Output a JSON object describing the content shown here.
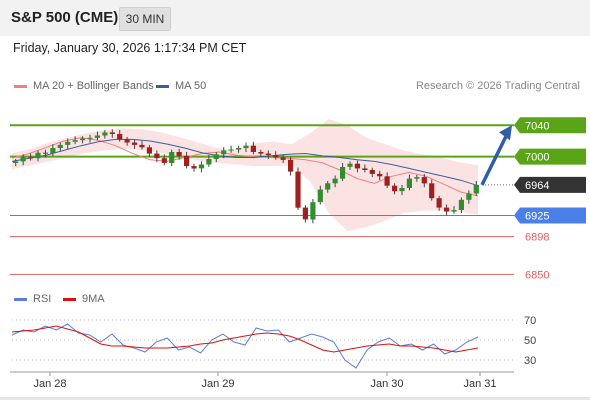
{
  "header": {
    "symbol": "S&P 500 (CME)",
    "timeframe": "30 MIN",
    "datetime": "Friday, January 30, 2026 1:17:34 PM CET",
    "credit": "Research © 2026 Trading Central"
  },
  "legend": [
    {
      "label": "MA 20 + Bollinger Bands",
      "color": "#f08080"
    },
    {
      "label": "MA 50",
      "color": "#3a5f9c"
    }
  ],
  "rsi_legend": [
    {
      "label": "RSI",
      "color": "#5b7fd6"
    },
    {
      "label": "9MA",
      "color": "#e01010"
    }
  ],
  "colors": {
    "resistance": "#5aa418",
    "pivot": "#4a7fe8",
    "support": "#e06060",
    "current": "#333333",
    "arrow": "#2e5fa8",
    "up": "#2f8f2f",
    "down": "#a02020"
  },
  "levels": [
    {
      "value": 7040,
      "label": "7040",
      "kind": "resistance"
    },
    {
      "value": 7000,
      "label": "7000",
      "kind": "resistance"
    },
    {
      "value": 6964,
      "label": "6964",
      "kind": "current"
    },
    {
      "value": 6925,
      "label": "6925",
      "kind": "pivot"
    },
    {
      "value": 6898,
      "label": "6898",
      "kind": "support"
    },
    {
      "value": 6850,
      "label": "6850",
      "kind": "support"
    }
  ],
  "chart_data": [
    {
      "type": "line",
      "ylim": [
        6830,
        7085
      ],
      "x_ticks": [
        "Jan 28",
        "Jan 29",
        "Jan 30",
        "Jan 31"
      ],
      "series": [
        {
          "name": "MA 50",
          "values": [
            6994,
            6998,
            7002,
            7008,
            7014,
            7019,
            7022,
            7022,
            7020,
            7016,
            7011,
            7005,
            7001,
            6999,
            6999,
            7001,
            7003,
            7004,
            7001,
            6999,
            6996,
            6994,
            6990,
            6985,
            6980,
            6975,
            6970,
            6963
          ]
        },
        {
          "name": "MA 20 + Bollinger Bands",
          "values": [
            6998,
            7004,
            7012,
            7020,
            7024,
            7021,
            7014,
            7004,
            6996,
            6994,
            6999,
            7004,
            7006,
            7002,
            7000,
            6999,
            6998,
            6996,
            6992,
            6983,
            6972,
            6966,
            6975,
            6980,
            6975,
            6965,
            6955,
            6950
          ]
        }
      ],
      "price_closes": [
        6994,
        6999,
        6998,
        7005,
        7004,
        7011,
        7015,
        7019,
        7021,
        7023,
        7024,
        7027,
        7031,
        7029,
        7022,
        7018,
        7015,
        7012,
        7004,
        6998,
        6992,
        7006,
        7001,
        6988,
        6985,
        6990,
        6997,
        7003,
        7008,
        7009,
        7011,
        7014,
        7006,
        7004,
        7002,
        6999,
        6996,
        6981,
        6935,
        6920,
        6942,
        6958,
        6966,
        6972,
        6987,
        6991,
        6985,
        6983,
        6978,
        6975,
        6963,
        6956,
        6960,
        6972,
        6974,
        6966,
        6947,
        6935,
        6930,
        6932,
        6945,
        6953,
        6964
      ],
      "bollinger_upper": [
        7004,
        7010,
        7018,
        7024,
        7030,
        7034,
        7036,
        7035,
        7031,
        7025,
        7018,
        7011,
        7009,
        7017,
        7019,
        7016,
        7030,
        7048,
        7040,
        7024,
        7016,
        7008,
        7003,
        6999,
        6993,
        6989
      ],
      "bollinger_lower": [
        6984,
        6989,
        6994,
        6999,
        7005,
        7008,
        7010,
        7008,
        7005,
        7000,
        6995,
        6992,
        6990,
        6988,
        6988,
        6989,
        6968,
        6928,
        6905,
        6910,
        6918,
        6928,
        6931,
        6931,
        6930,
        6926
      ]
    },
    {
      "type": "line",
      "ylim": [
        20,
        80
      ],
      "y_ticks": [
        70,
        50,
        30
      ],
      "series": [
        {
          "name": "RSI",
          "values": [
            55,
            60,
            58,
            64,
            60,
            66,
            57,
            55,
            48,
            56,
            45,
            42,
            38,
            48,
            52,
            40,
            43,
            37,
            50,
            56,
            48,
            45,
            62,
            59,
            60,
            48,
            52,
            56,
            53,
            48,
            30,
            22,
            40,
            48,
            52,
            44,
            46,
            40,
            46,
            36,
            40,
            48,
            53
          ]
        },
        {
          "name": "9MA",
          "values": [
            58,
            59,
            60,
            62,
            64,
            61,
            58,
            52,
            46,
            44,
            44,
            43,
            42,
            42,
            42,
            43,
            44,
            46,
            47,
            50,
            52,
            54,
            56,
            57,
            56,
            54,
            50,
            45,
            40,
            38,
            40,
            42,
            44,
            45,
            46,
            44,
            44,
            43,
            42,
            40,
            38,
            40,
            42
          ]
        }
      ]
    }
  ]
}
